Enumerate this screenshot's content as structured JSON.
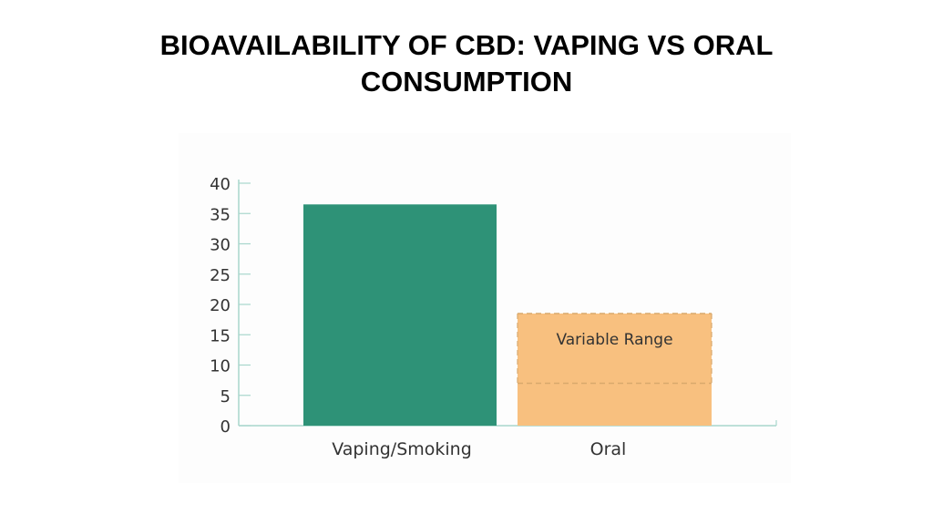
{
  "slide": {
    "title_line1": "BIOAVAILABILITY OF CBD: VAPING VS ORAL",
    "title_line2": "CONSUMPTION"
  },
  "chart_data": {
    "type": "bar",
    "title": "BIOAVAILABILITY OF CBD: VAPING VS ORAL CONSUMPTION",
    "categories": [
      "Vaping/Smoking",
      "Oral"
    ],
    "values": [
      36.5,
      18.5
    ],
    "ranges": [
      null,
      [
        7,
        18.5
      ]
    ],
    "annotation": "Variable Range",
    "ylim": [
      0,
      40
    ],
    "yticks": [
      0,
      5,
      10,
      15,
      20,
      25,
      30,
      35,
      40
    ],
    "xlabel": "",
    "ylabel": "",
    "grid": false,
    "colors": {
      "vaping": "#2e9277",
      "oral": "#f8c07f",
      "oral_dash": "#d9a96c",
      "axis": "#a8d6cc",
      "text": "#333333"
    }
  }
}
